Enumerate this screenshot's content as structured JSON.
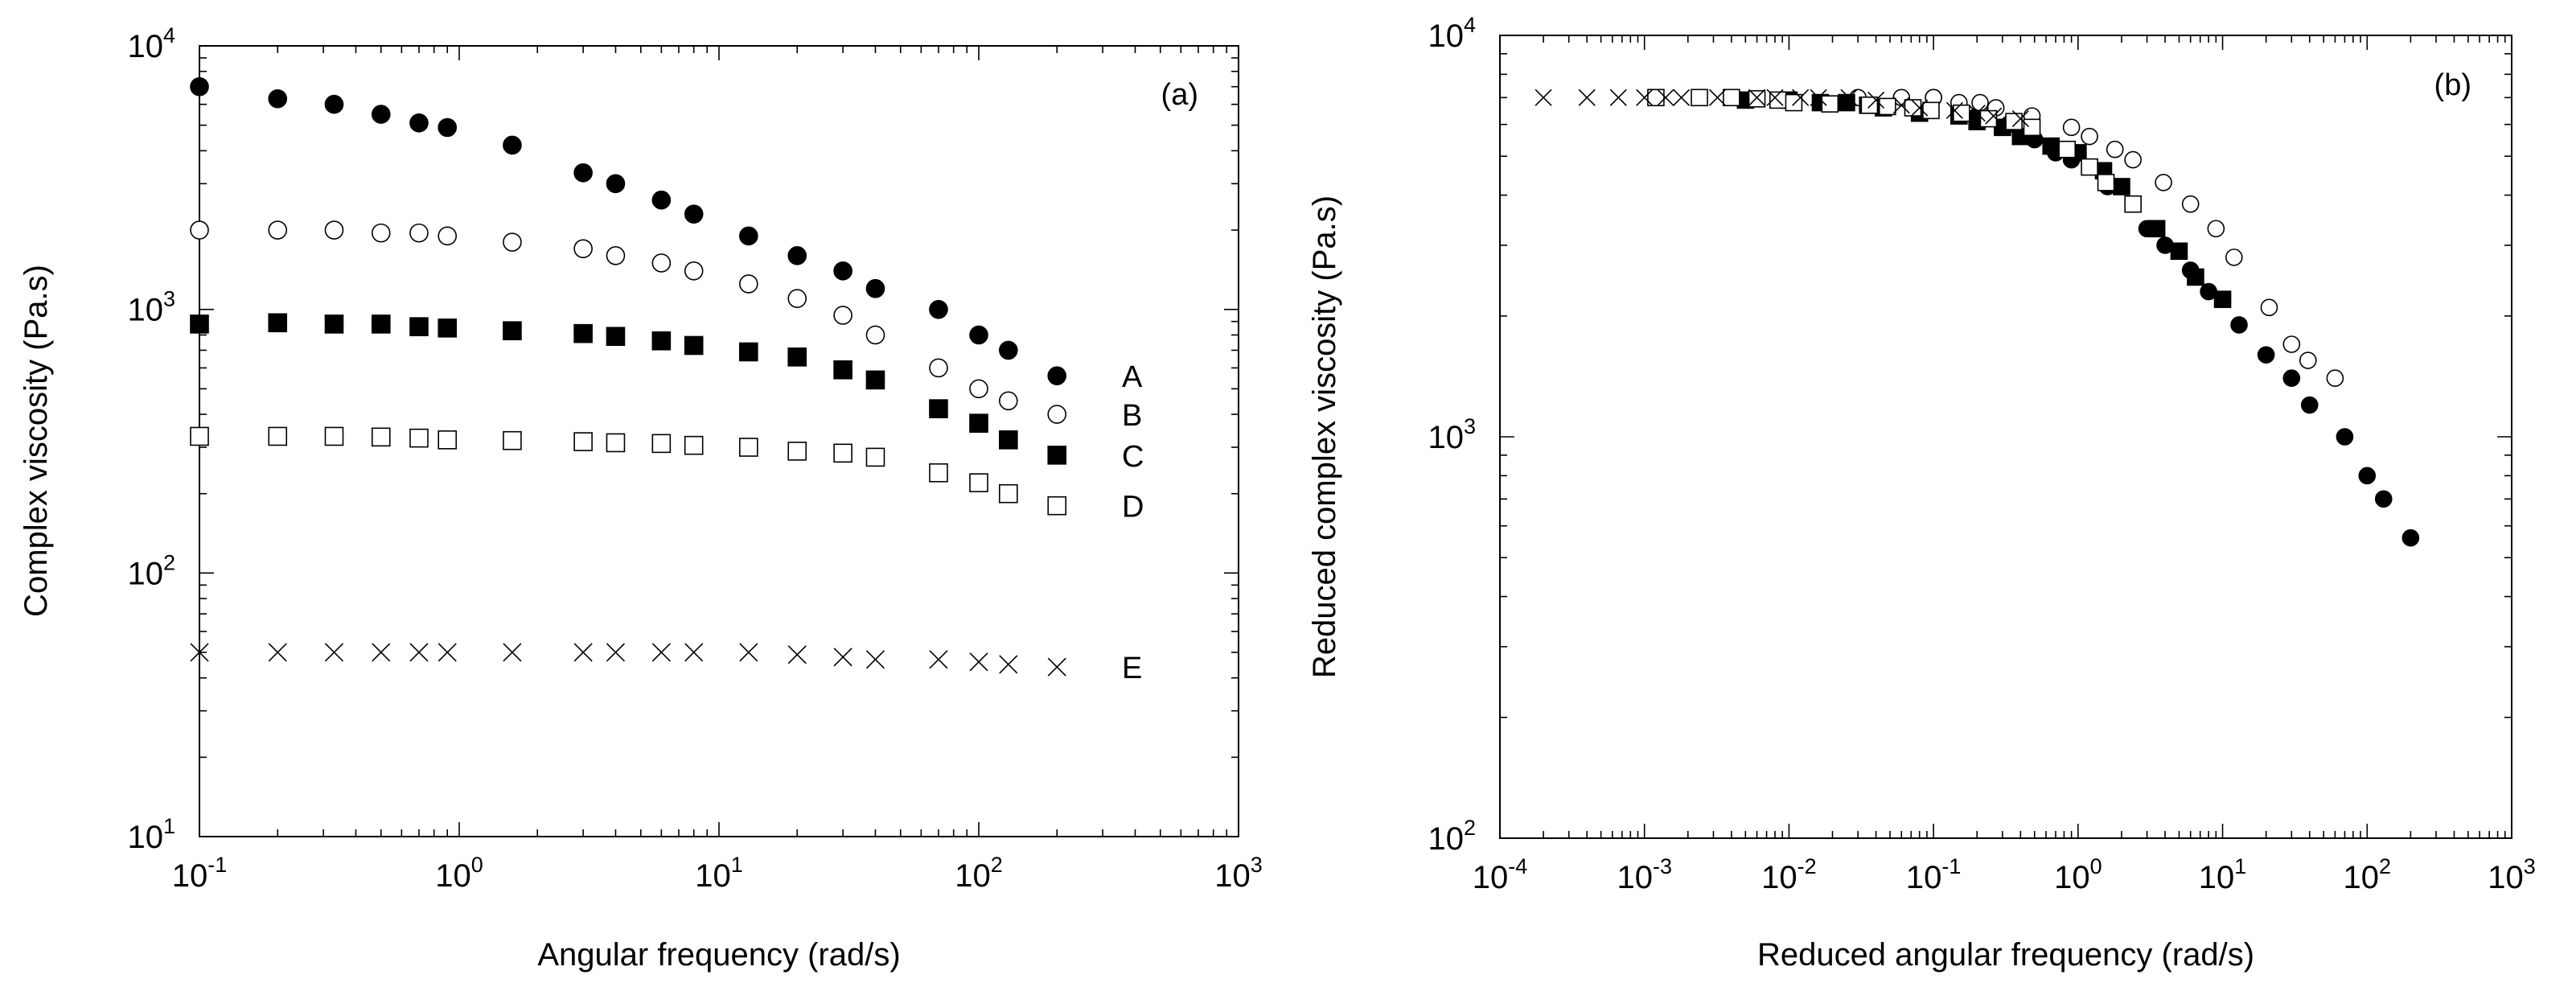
{
  "chart_data": [
    {
      "type": "scatter",
      "panel_label": "(a)",
      "xlabel": "Angular frequency (rad/s)",
      "ylabel": "Complex viscosity (Pa.s)",
      "xscale": "log",
      "yscale": "log",
      "xlim": [
        0.1,
        1000
      ],
      "ylim": [
        10,
        10000
      ],
      "x_ticks": [
        {
          "base": "10",
          "exp": "-1",
          "value": 0.1
        },
        {
          "base": "10",
          "exp": "0",
          "value": 1
        },
        {
          "base": "10",
          "exp": "1",
          "value": 10
        },
        {
          "base": "10",
          "exp": "2",
          "value": 100
        },
        {
          "base": "10",
          "exp": "3",
          "value": 1000
        }
      ],
      "y_ticks": [
        {
          "base": "10",
          "exp": "1",
          "value": 10
        },
        {
          "base": "10",
          "exp": "2",
          "value": 100
        },
        {
          "base": "10",
          "exp": "3",
          "value": 1000
        },
        {
          "base": "10",
          "exp": "4",
          "value": 10000
        }
      ],
      "series": [
        {
          "name": "A",
          "marker": "filled-circle",
          "x": [
            0.1,
            0.2,
            0.33,
            0.5,
            0.7,
            0.9,
            1.6,
            3,
            4,
            6,
            8,
            13,
            20,
            30,
            40,
            70,
            100,
            130,
            200
          ],
          "y": [
            7000,
            6300,
            6000,
            5500,
            5100,
            4900,
            4200,
            3300,
            3000,
            2600,
            2300,
            1900,
            1600,
            1400,
            1200,
            1000,
            800,
            700,
            560
          ]
        },
        {
          "name": "B",
          "marker": "open-circle",
          "x": [
            0.1,
            0.2,
            0.33,
            0.5,
            0.7,
            0.9,
            1.6,
            3,
            4,
            6,
            8,
            13,
            20,
            30,
            40,
            70,
            100,
            130,
            200
          ],
          "y": [
            2000,
            2000,
            2000,
            1950,
            1950,
            1900,
            1800,
            1700,
            1600,
            1500,
            1400,
            1250,
            1100,
            950,
            800,
            600,
            500,
            450,
            400
          ]
        },
        {
          "name": "C",
          "marker": "filled-square",
          "x": [
            0.1,
            0.2,
            0.33,
            0.5,
            0.7,
            0.9,
            1.6,
            3,
            4,
            6,
            8,
            13,
            20,
            30,
            40,
            70,
            100,
            130,
            200
          ],
          "y": [
            880,
            890,
            880,
            880,
            860,
            850,
            830,
            810,
            790,
            760,
            730,
            690,
            660,
            590,
            540,
            420,
            370,
            320,
            280
          ]
        },
        {
          "name": "D",
          "marker": "open-square",
          "x": [
            0.1,
            0.2,
            0.33,
            0.5,
            0.7,
            0.9,
            1.6,
            3,
            4,
            6,
            8,
            13,
            20,
            30,
            40,
            70,
            100,
            130,
            200
          ],
          "y": [
            330,
            330,
            330,
            328,
            325,
            320,
            318,
            315,
            312,
            310,
            305,
            300,
            290,
            285,
            275,
            240,
            220,
            200,
            180
          ]
        },
        {
          "name": "E",
          "marker": "cross",
          "x": [
            0.1,
            0.2,
            0.33,
            0.5,
            0.7,
            0.9,
            1.6,
            3,
            4,
            6,
            8,
            13,
            20,
            30,
            40,
            70,
            100,
            130,
            200
          ],
          "y": [
            50,
            50,
            50,
            50,
            50,
            50,
            50,
            50,
            50,
            50,
            50,
            50,
            49,
            48,
            47,
            47,
            46,
            45,
            44
          ]
        }
      ]
    },
    {
      "type": "scatter",
      "panel_label": "(b)",
      "xlabel": "Reduced angular frequency (rad/s)",
      "ylabel": "Reduced complex viscosity (Pa.s)",
      "xscale": "log",
      "yscale": "log",
      "xlim": [
        0.0001,
        1000
      ],
      "ylim": [
        100,
        10000
      ],
      "x_ticks": [
        {
          "base": "10",
          "exp": "-4",
          "value": 0.0001
        },
        {
          "base": "10",
          "exp": "-3",
          "value": 0.001
        },
        {
          "base": "10",
          "exp": "-2",
          "value": 0.01
        },
        {
          "base": "10",
          "exp": "-1",
          "value": 0.1
        },
        {
          "base": "10",
          "exp": "0",
          "value": 1
        },
        {
          "base": "10",
          "exp": "1",
          "value": 10
        },
        {
          "base": "10",
          "exp": "2",
          "value": 100
        },
        {
          "base": "10",
          "exp": "3",
          "value": 1000
        }
      ],
      "y_ticks": [
        {
          "base": "10",
          "exp": "2",
          "value": 100
        },
        {
          "base": "10",
          "exp": "3",
          "value": 1000
        },
        {
          "base": "10",
          "exp": "4",
          "value": 10000
        }
      ],
      "series": [
        {
          "name": "A",
          "marker": "filled-circle",
          "x": [
            0.1,
            0.2,
            0.33,
            0.5,
            0.7,
            0.9,
            1.6,
            3,
            4,
            6,
            8,
            13,
            20,
            30,
            40,
            70,
            100,
            130,
            200
          ],
          "y": [
            7000,
            6300,
            6000,
            5500,
            5100,
            4900,
            4200,
            3300,
            3000,
            2600,
            2300,
            1900,
            1600,
            1400,
            1200,
            1000,
            800,
            700,
            560
          ]
        },
        {
          "name": "B",
          "marker": "open-circle",
          "x": [
            0.03,
            0.06,
            0.1,
            0.15,
            0.21,
            0.27,
            0.48,
            0.9,
            1.2,
            1.8,
            2.4,
            3.9,
            6,
            9,
            12,
            21,
            30,
            39,
            60
          ],
          "y": [
            7000,
            7000,
            7000,
            6800,
            6800,
            6600,
            6300,
            5900,
            5600,
            5200,
            4900,
            4300,
            3800,
            3300,
            2800,
            2100,
            1700,
            1550,
            1400
          ]
        },
        {
          "name": "C",
          "marker": "filled-square",
          "x": [
            0.005,
            0.01,
            0.0165,
            0.025,
            0.035,
            0.045,
            0.08,
            0.15,
            0.2,
            0.3,
            0.4,
            0.65,
            1,
            1.5,
            2,
            3.5,
            5,
            6.5,
            10
          ],
          "y": [
            6900,
            6900,
            6800,
            6800,
            6700,
            6600,
            6400,
            6300,
            6100,
            5900,
            5600,
            5300,
            5100,
            4600,
            4200,
            3300,
            2900,
            2500,
            2200
          ]
        },
        {
          "name": "D",
          "marker": "open-square",
          "x": [
            0.0012,
            0.0024,
            0.004,
            0.006,
            0.0084,
            0.0108,
            0.0192,
            0.036,
            0.048,
            0.072,
            0.096,
            0.156,
            0.24,
            0.36,
            0.48,
            0.84,
            1.2,
            1.56,
            2.4
          ],
          "y": [
            7000,
            7000,
            7000,
            6950,
            6900,
            6800,
            6750,
            6700,
            6650,
            6600,
            6500,
            6400,
            6200,
            6100,
            5900,
            5200,
            4700,
            4300,
            3800
          ]
        },
        {
          "name": "E",
          "marker": "cross",
          "x": [
            0.0002,
            0.0004,
            0.00066,
            0.001,
            0.0014,
            0.0018,
            0.0032,
            0.006,
            0.008,
            0.012,
            0.016,
            0.026,
            0.04,
            0.06,
            0.08,
            0.14,
            0.2,
            0.26,
            0.4
          ],
          "y": [
            7000,
            7000,
            7000,
            7000,
            7000,
            7000,
            7000,
            7000,
            7000,
            7000,
            7000,
            7000,
            6900,
            6700,
            6600,
            6500,
            6400,
            6300,
            6200
          ]
        }
      ]
    }
  ]
}
